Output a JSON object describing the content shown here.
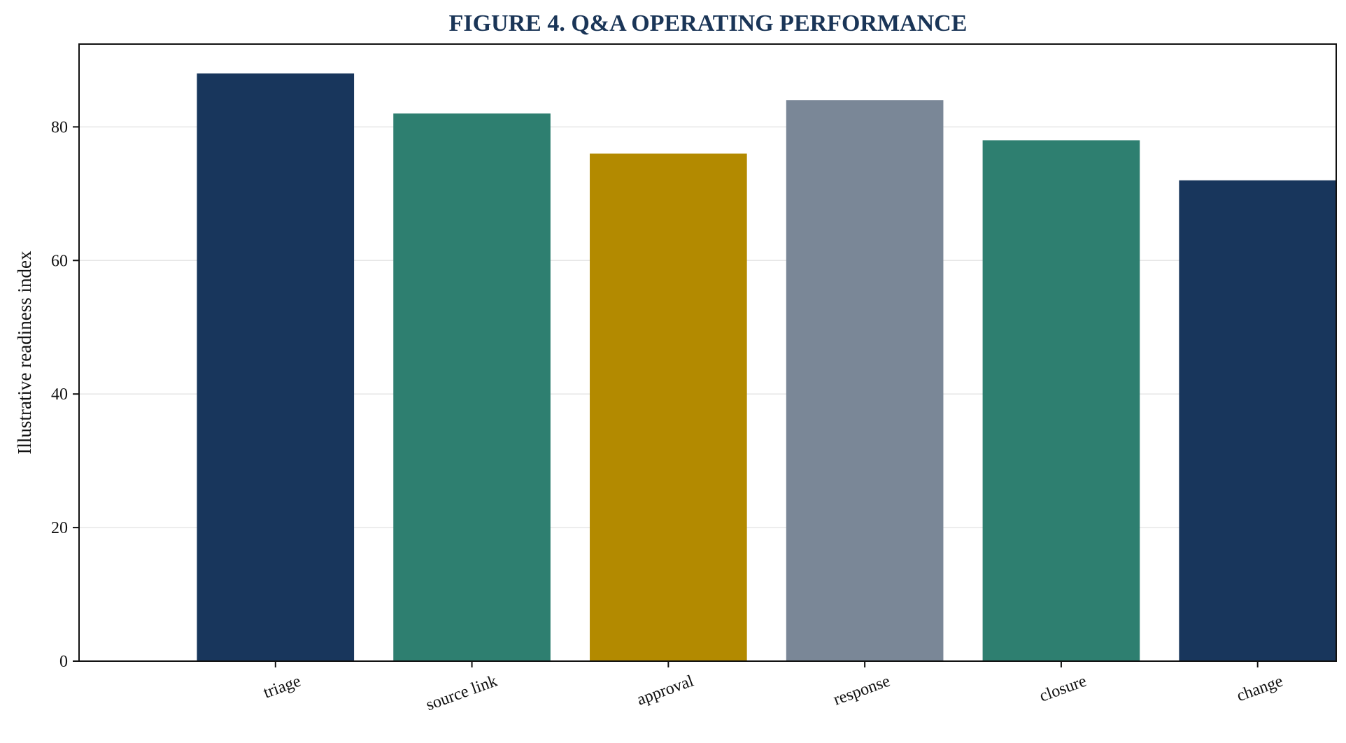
{
  "colors": {
    "title": "#1a3557",
    "navy": "#18365c",
    "teal": "#2e7f70",
    "gold": "#b38a00",
    "slate": "#7a8797",
    "grid": "#e6e6e6",
    "axis": "#111111"
  },
  "chart_data": {
    "type": "bar",
    "title": "FIGURE 4. Q&A OPERATING PERFORMANCE",
    "xlabel": "",
    "ylabel": "Illustrative readiness index",
    "categories": [
      "triage",
      "source link",
      "approval",
      "response",
      "closure",
      "change"
    ],
    "values": [
      88,
      82,
      76,
      84,
      78,
      72
    ],
    "bar_colors": [
      "#18365c",
      "#2e7f70",
      "#b38a00",
      "#7a8797",
      "#2e7f70",
      "#18365c"
    ],
    "ylim": [
      0,
      92.4
    ],
    "yticks": [
      0,
      20,
      40,
      60,
      80
    ],
    "ytick_labels": [
      "0",
      "20",
      "40",
      "60",
      "80"
    ],
    "grid": "y",
    "legend": "none"
  }
}
